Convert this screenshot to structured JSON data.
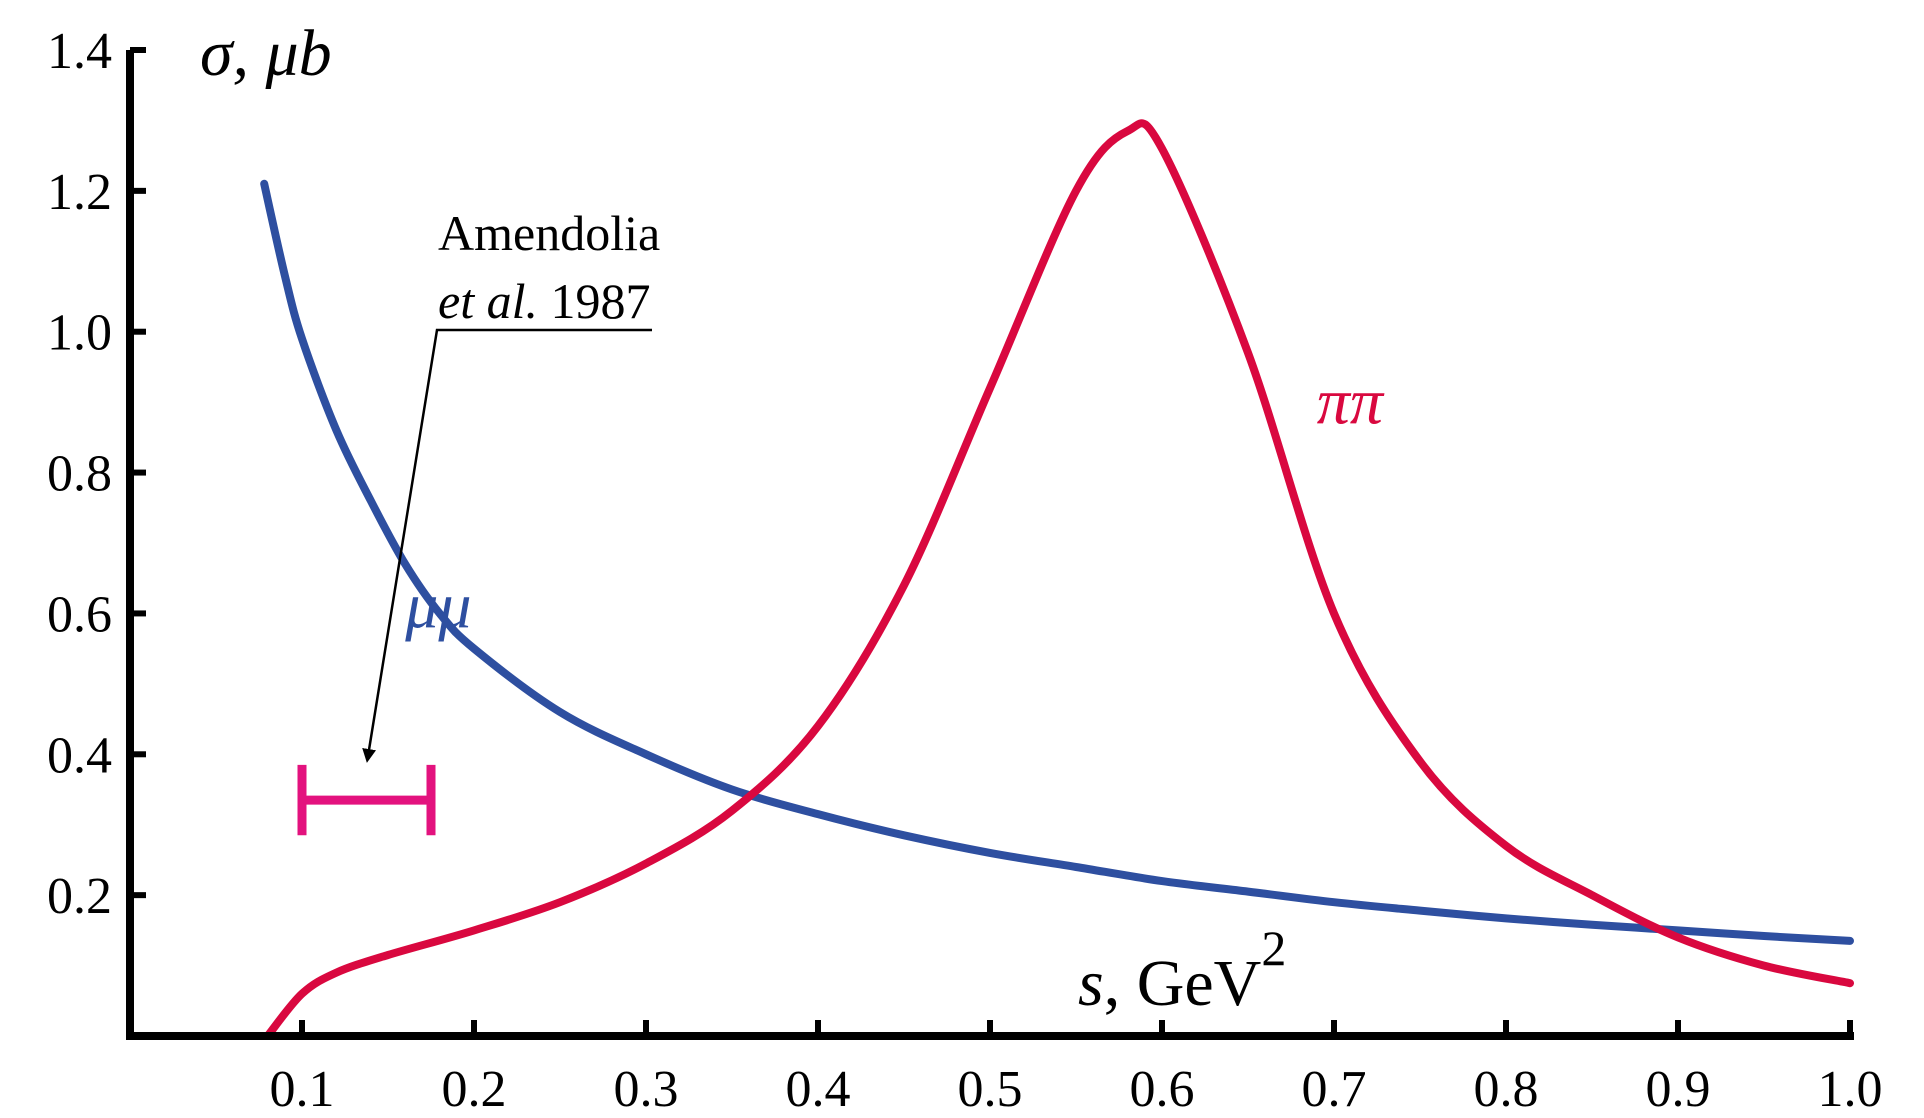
{
  "chart_data": {
    "type": "line",
    "ylabel": "σ, μb",
    "xlabel_var": "s",
    "xlabel_unit": ", GeV",
    "xlabel_exp": "2",
    "xlim": [
      0.0,
      1.0
    ],
    "ylim": [
      0.0,
      1.4
    ],
    "xticks": [
      0.1,
      0.2,
      0.3,
      0.4,
      0.5,
      0.6,
      0.7,
      0.8,
      0.9,
      1.0
    ],
    "xtick_labels": [
      "0.1",
      "0.2",
      "0.3",
      "0.4",
      "0.5",
      "0.6",
      "0.7",
      "0.8",
      "0.9",
      "1.0"
    ],
    "yticks": [
      0.2,
      0.4,
      0.6,
      0.8,
      1.0,
      1.2,
      1.4
    ],
    "ytick_labels": [
      "0.2",
      "0.4",
      "0.6",
      "0.8",
      "1.0",
      "1.2",
      "1.4"
    ],
    "series": [
      {
        "name": "μμ",
        "color": "#2e4fa0",
        "x": [
          0.078,
          0.09,
          0.1,
          0.12,
          0.14,
          0.16,
          0.18,
          0.2,
          0.25,
          0.3,
          0.35,
          0.4,
          0.45,
          0.5,
          0.55,
          0.6,
          0.65,
          0.7,
          0.75,
          0.8,
          0.85,
          0.9,
          0.95,
          1.0
        ],
        "y": [
          1.21,
          1.08,
          0.99,
          0.86,
          0.76,
          0.67,
          0.6,
          0.55,
          0.46,
          0.4,
          0.35,
          0.315,
          0.285,
          0.26,
          0.24,
          0.22,
          0.205,
          0.19,
          0.178,
          0.167,
          0.158,
          0.15,
          0.142,
          0.135
        ]
      },
      {
        "name": "ππ",
        "color": "#d9083f",
        "x": [
          0.08,
          0.1,
          0.12,
          0.15,
          0.2,
          0.25,
          0.3,
          0.35,
          0.4,
          0.45,
          0.5,
          0.55,
          0.58,
          0.6,
          0.65,
          0.7,
          0.75,
          0.8,
          0.85,
          0.9,
          0.95,
          1.0
        ],
        "y": [
          0.0,
          0.06,
          0.09,
          0.115,
          0.15,
          0.19,
          0.245,
          0.32,
          0.44,
          0.64,
          0.92,
          1.2,
          1.285,
          1.26,
          0.97,
          0.6,
          0.39,
          0.27,
          0.2,
          0.14,
          0.1,
          0.075
        ]
      }
    ],
    "series_labels": [
      {
        "text": "μμ",
        "x": 0.16,
        "y": 0.58,
        "color": "#2e4fa0"
      },
      {
        "text": "ππ",
        "x": 0.69,
        "y": 0.87,
        "color": "#d9083f"
      }
    ],
    "data_point": {
      "label": "Amendolia et al. 1987",
      "x_low": 0.1,
      "x_high": 0.175,
      "y": 0.335,
      "y_err": 0.05,
      "color": "#e3127e"
    },
    "annotation": {
      "line1": "Amendolia",
      "line2_italic": "et al.",
      "line2_rest": " 1987"
    },
    "grid": false
  }
}
